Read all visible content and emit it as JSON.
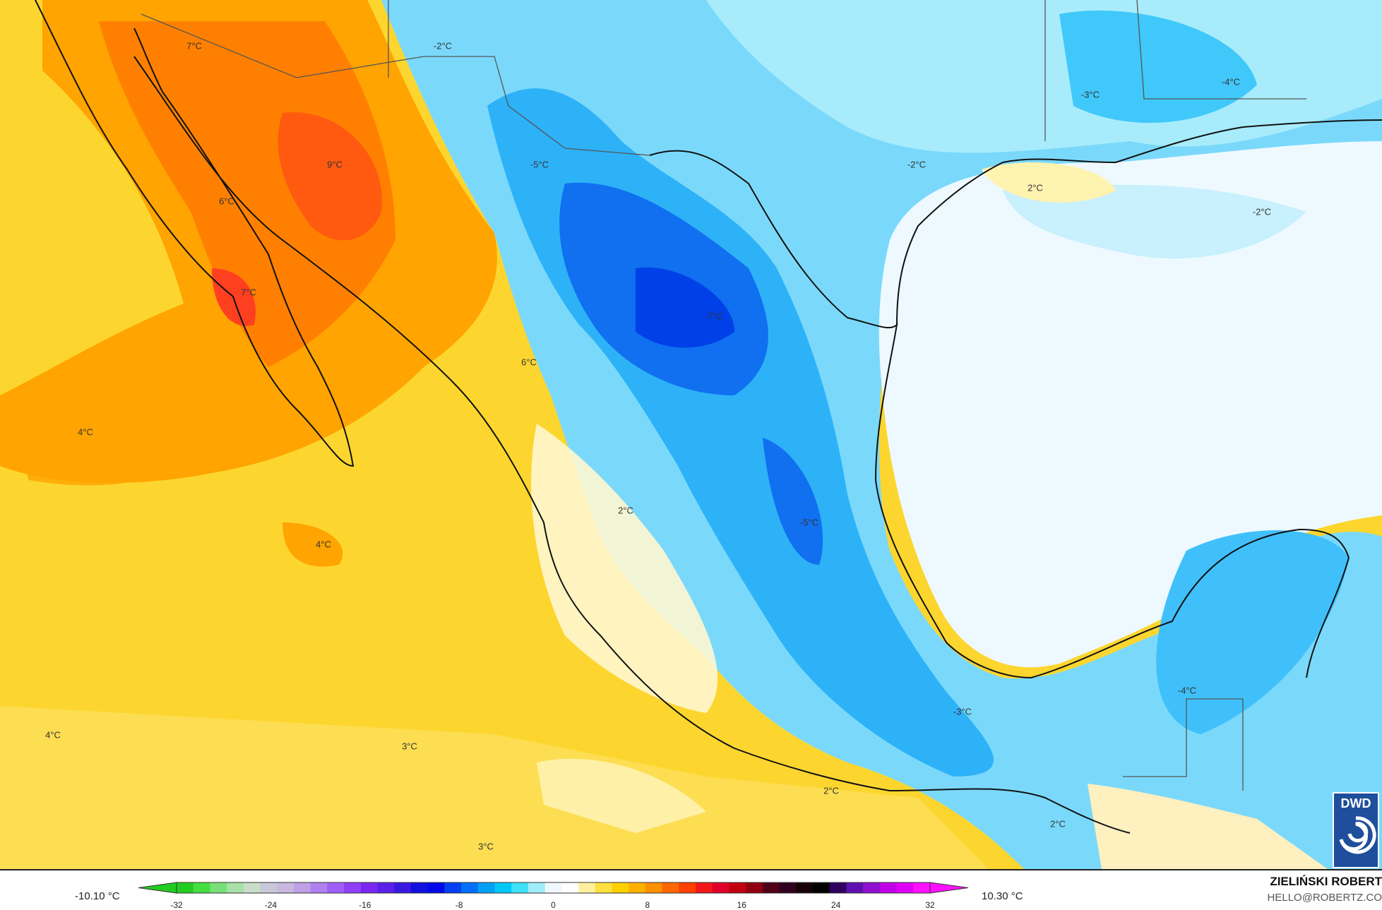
{
  "map": {
    "variable_unit": "°C",
    "labels": [
      {
        "text": "7°C"
      },
      {
        "text": "-2°C"
      },
      {
        "text": "9°C"
      },
      {
        "text": "-5°C"
      },
      {
        "text": "-2°C"
      },
      {
        "text": "-3°C"
      },
      {
        "text": "-4°C"
      },
      {
        "text": "2°C"
      },
      {
        "text": "-2°C"
      },
      {
        "text": "6°C"
      },
      {
        "text": "7°C"
      },
      {
        "text": "-7°C"
      },
      {
        "text": "6°C"
      },
      {
        "text": "4°C"
      },
      {
        "text": "2°C"
      },
      {
        "text": "-5°C"
      },
      {
        "text": "4°C"
      },
      {
        "text": "-4°C"
      },
      {
        "text": "-3°C"
      },
      {
        "text": "4°C"
      },
      {
        "text": "3°C"
      },
      {
        "text": "2°C"
      },
      {
        "text": "2°C"
      },
      {
        "text": "3°C"
      }
    ]
  },
  "legend": {
    "min_label": "-10.10 °C",
    "max_label": "10.30 °C",
    "ticks": [
      "-32",
      "-24",
      "-16",
      "-8",
      "0",
      "8",
      "16",
      "24",
      "32"
    ],
    "range": [
      -34,
      34
    ],
    "colors": [
      "#22cc22",
      "#44dd44",
      "#77e077",
      "#a8e0a8",
      "#c8dcc8",
      "#c8c8d8",
      "#c8b8e0",
      "#c0a0e8",
      "#b080f0",
      "#a060f8",
      "#9040f8",
      "#7a28f0",
      "#5a20e8",
      "#3818e0",
      "#1010e0",
      "#0008e8",
      "#0040f0",
      "#0070f8",
      "#00a0f8",
      "#00c8f8",
      "#40e0f8",
      "#a0ecf8",
      "#f0f8ff",
      "#ffffff",
      "#fff0a0",
      "#ffe040",
      "#ffd000",
      "#ffb000",
      "#ff9000",
      "#ff6800",
      "#ff4000",
      "#f01818",
      "#e00028",
      "#c00010",
      "#900010",
      "#500018",
      "#300020",
      "#180008",
      "#000000",
      "#300060",
      "#6010b0",
      "#9010d0",
      "#c000e8",
      "#e000f8",
      "#ff10ff"
    ]
  },
  "brand": {
    "name": "ZIELIŃSKI ROBERT",
    "email": "HELLO@ROBERTZ.CO",
    "logo_text": "DWD"
  }
}
